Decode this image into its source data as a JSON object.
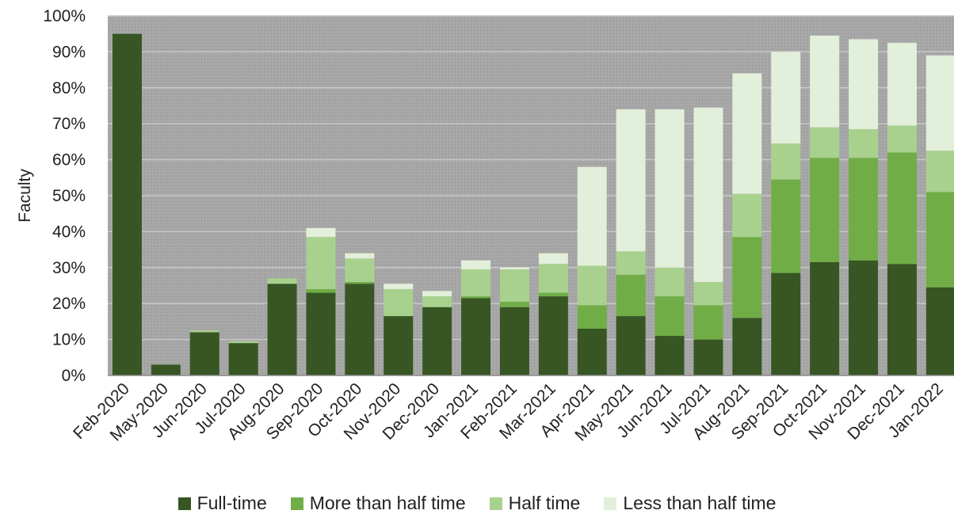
{
  "chart_data": {
    "type": "bar",
    "stacked": true,
    "ylabel": "Faculty",
    "xlabel": "",
    "ylim": [
      0,
      100
    ],
    "yticks": [
      "0%",
      "10%",
      "20%",
      "30%",
      "40%",
      "50%",
      "60%",
      "70%",
      "80%",
      "90%",
      "100%"
    ],
    "grid": true,
    "legend_position": "bottom",
    "categories": [
      "Feb-2020",
      "May-2020",
      "Jun-2020",
      "Jul-2020",
      "Aug-2020",
      "Sep-2020",
      "Oct-2020",
      "Nov-2020",
      "Dec-2020",
      "Jan-2021",
      "Feb-2021",
      "Mar-2021",
      "Apr-2021",
      "May-2021",
      "Jun-2021",
      "Jul-2021",
      "Aug-2021",
      "Sep-2021",
      "Oct-2021",
      "Nov-2021",
      "Dec-2021",
      "Jan-2022"
    ],
    "series": [
      {
        "name": "Full-time",
        "color": "#375623",
        "values": [
          95,
          3,
          12,
          9,
          25.5,
          23,
          25.5,
          16.5,
          19,
          21.5,
          19,
          22,
          13,
          16.5,
          11,
          10,
          16,
          28.5,
          31.5,
          32,
          31,
          24.5
        ]
      },
      {
        "name": "More than half time",
        "color": "#70ad47",
        "values": [
          0,
          0,
          0,
          0,
          0,
          1,
          0.5,
          0,
          0,
          0.5,
          1.5,
          1,
          6.5,
          11.5,
          11,
          9.5,
          22.5,
          26,
          29,
          28.5,
          31,
          26.5
        ]
      },
      {
        "name": "Half time",
        "color": "#a9d18e",
        "values": [
          0,
          0,
          0.5,
          0.5,
          1.5,
          14.5,
          6.5,
          7.5,
          3,
          7.5,
          9,
          8,
          11,
          6.5,
          8,
          6.5,
          12,
          10,
          8.5,
          8,
          7.5,
          11.5
        ]
      },
      {
        "name": "Less than half time",
        "color": "#e2efda",
        "values": [
          0,
          0,
          0,
          0,
          0,
          2.5,
          1.5,
          1.5,
          1.5,
          2.5,
          0.5,
          3,
          27.5,
          39.5,
          44,
          48.5,
          33.5,
          25.5,
          25.5,
          25,
          23,
          26.5
        ]
      }
    ]
  }
}
